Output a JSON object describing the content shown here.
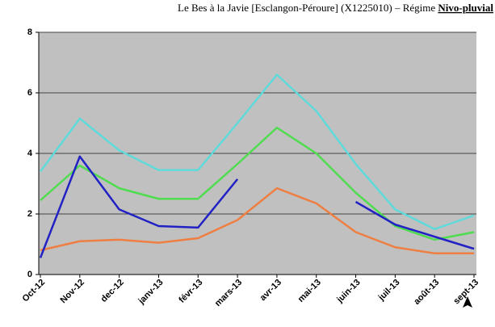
{
  "chart_data": {
    "type": "line",
    "title": "Le Bes à la Javie [Esclangon-Péroure] (X1225010) – Régime",
    "title_highlight": "Nivo-pluvial",
    "categories": [
      "Oct-12",
      "Nov-12",
      "dec-12",
      "janv-13",
      "févr-13",
      "mars-13",
      "avr-13",
      "mai-13",
      "juin-13",
      "juil-13",
      "août-13",
      "sept-13"
    ],
    "series": [
      {
        "color": "#5fdada",
        "values": [
          3.4,
          5.15,
          4.1,
          3.45,
          3.45,
          5.0,
          6.6,
          5.4,
          3.65,
          2.15,
          1.5,
          1.95
        ]
      },
      {
        "color": "#4fdc4f",
        "values": [
          2.45,
          3.6,
          2.85,
          2.5,
          2.5,
          3.65,
          4.85,
          4.0,
          2.7,
          1.6,
          1.15,
          1.4
        ]
      },
      {
        "color": "#ee7e42",
        "values": [
          0.8,
          1.1,
          1.15,
          1.05,
          1.2,
          1.8,
          2.85,
          2.35,
          1.4,
          0.9,
          0.7,
          0.7
        ]
      },
      {
        "color": "#2222c4",
        "values": [
          0.55,
          3.9,
          2.15,
          1.6,
          1.55,
          3.15,
          null,
          null,
          2.4,
          1.65,
          1.25,
          0.85
        ]
      }
    ],
    "ylim": [
      0,
      8
    ],
    "yticks": [
      0,
      2,
      4,
      6,
      8
    ],
    "grid": true,
    "plot_background": "#c0c0c0"
  }
}
